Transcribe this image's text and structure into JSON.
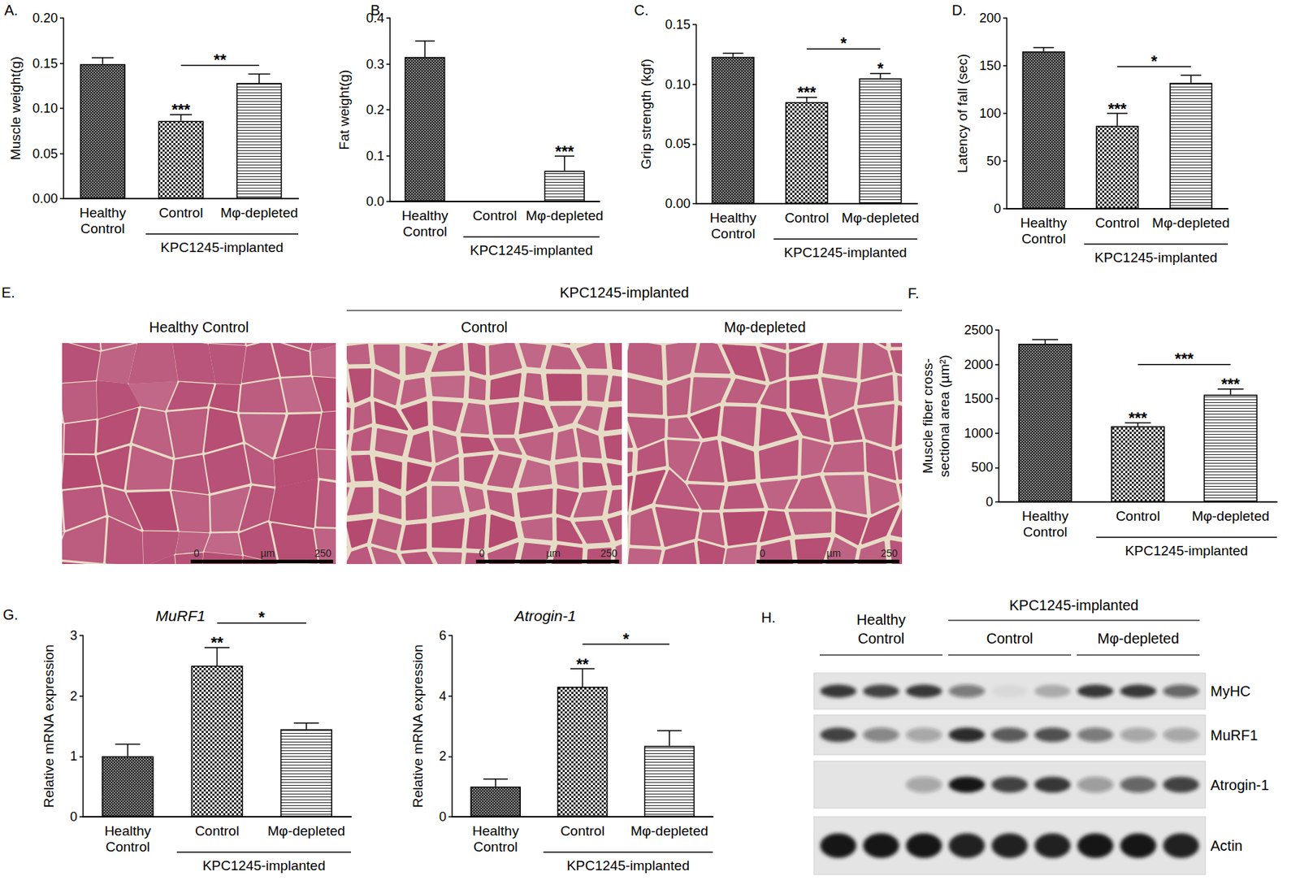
{
  "chart_data": [
    {
      "panel": "A.",
      "type": "bar",
      "y_label": "Muscle weight(g)",
      "categories": [
        "Healthy\nControl",
        "Control",
        "Mφ-depleted"
      ],
      "group": {
        "label": "KPC1245-implanted",
        "categories": [
          "Control",
          "Mφ-depleted"
        ]
      },
      "values": [
        0.149,
        0.086,
        0.128
      ],
      "errors": [
        0.007,
        0.007,
        0.01
      ],
      "colors": [
        "#3c3c3c",
        "#2a2a2a",
        "#2a2a2a"
      ],
      "ylim": [
        0,
        0.2
      ],
      "yticks": [
        {
          "value": 0,
          "label": "0.00"
        },
        0.05,
        {
          "value": 0.1,
          "label": "0.10"
        },
        0.15,
        {
          "value": 0.2,
          "label": "0.20"
        }
      ],
      "stars": [
        null,
        "***",
        null
      ],
      "comparison": {
        "between": [
          "Control",
          "Mφ-depleted"
        ],
        "label": "**"
      }
    },
    {
      "panel": "B.",
      "type": "bar",
      "y_label": "Fat weight(g)",
      "categories": [
        "Healthy\nControl",
        "Control",
        "Mφ-depleted"
      ],
      "group": {
        "label": "KPC1245-implanted",
        "categories": [
          "Control",
          "Mφ-depleted"
        ]
      },
      "values": [
        0.315,
        0,
        0.067
      ],
      "errors": [
        0.035,
        0,
        0.032
      ],
      "colors": [
        "#3c3c3c",
        "#2a2a2a",
        "#2a2a2a"
      ],
      "ylim": [
        0,
        0.4
      ],
      "yticks": [
        {
          "value": 0,
          "label": "0.0"
        },
        0.1,
        0.2,
        0.3,
        0.4
      ],
      "stars": [
        null,
        null,
        "***"
      ]
    },
    {
      "panel": "C.",
      "type": "bar",
      "y_label": "Grip strength (kgf)",
      "categories": [
        "Healthy\nControl",
        "Control",
        "Mφ-depleted"
      ],
      "group": {
        "label": "KPC1245-implanted",
        "categories": [
          "Control",
          "Mφ-depleted"
        ]
      },
      "values": [
        0.123,
        0.085,
        0.105
      ],
      "errors": [
        0.003,
        0.004,
        0.004
      ],
      "colors": [
        "#3c3c3c",
        "#2a2a2a",
        "#2a2a2a"
      ],
      "ylim": [
        0,
        0.15
      ],
      "yticks": [
        {
          "value": 0,
          "label": "0.00"
        },
        0.05,
        {
          "value": 0.1,
          "label": "0.10"
        },
        0.15
      ],
      "stars": [
        null,
        "***",
        "*"
      ],
      "comparison": {
        "between": [
          "Control",
          "Mφ-depleted"
        ],
        "label": "*"
      }
    },
    {
      "panel": "D.",
      "type": "bar",
      "y_label": "Latency of fall (sec)",
      "categories": [
        "Healthy\nControl",
        "Control",
        "Mφ-depleted"
      ],
      "group": {
        "label": "KPC1245-implanted",
        "categories": [
          "Control",
          "Mφ-depleted"
        ]
      },
      "values": [
        165,
        87,
        132
      ],
      "errors": [
        4,
        13,
        8
      ],
      "colors": [
        "#3c3c3c",
        "#2a2a2a",
        "#2a2a2a"
      ],
      "ylim": [
        0,
        200
      ],
      "yticks": [
        0,
        50,
        100,
        150,
        200
      ],
      "stars": [
        null,
        "***",
        null
      ],
      "comparison": {
        "between": [
          "Control",
          "Mφ-depleted"
        ],
        "label": "*"
      }
    },
    {
      "panel": "E.",
      "type": "micrograph",
      "images": [
        "Healthy Control",
        "Control",
        "Mφ-depleted"
      ],
      "group": {
        "label": "KPC1245-implanted",
        "images": [
          "Control",
          "Mφ-depleted"
        ]
      },
      "scale_bar": {
        "min": 0,
        "max": 250,
        "unit": "µm"
      }
    },
    {
      "panel": "F.",
      "type": "bar",
      "y_label": "Muscle fiber cross-\nsectional area (µm²)",
      "categories": [
        "Healthy\nControl",
        "Control",
        "Mφ-depleted"
      ],
      "group": {
        "label": "KPC1245-implanted",
        "categories": [
          "Control",
          "Mφ-depleted"
        ]
      },
      "values": [
        2300,
        1100,
        1560
      ],
      "errors": [
        60,
        50,
        80
      ],
      "colors": [
        "#3c3c3c",
        "#2a2a2a",
        "#2a2a2a"
      ],
      "ylim": [
        0,
        2500
      ],
      "yticks": [
        0,
        500,
        1000,
        1500,
        2000,
        2500
      ],
      "stars": [
        null,
        "***",
        "***"
      ],
      "comparison": {
        "between": [
          "Control",
          "Mφ-depleted"
        ],
        "label": "***"
      }
    },
    {
      "panel": "G.",
      "type": "bar",
      "title": "MuRF1",
      "y_label": "Relative mRNA expression",
      "categories": [
        "Healthy\nControl",
        "Control",
        "Mφ-depleted"
      ],
      "group": {
        "label": "KPC1245-implanted",
        "categories": [
          "Control",
          "Mφ-depleted"
        ]
      },
      "values": [
        1.0,
        2.5,
        1.45
      ],
      "errors": [
        0.2,
        0.3,
        0.1
      ],
      "colors": [
        "#3c3c3c",
        "#2a2a2a",
        "#2a2a2a"
      ],
      "ylim": [
        0,
        3
      ],
      "yticks": [
        0,
        1,
        2,
        3
      ],
      "stars": [
        null,
        "**",
        null
      ],
      "comparison": {
        "between": [
          "Control",
          "Mφ-depleted"
        ],
        "label": "*"
      }
    },
    {
      "type": "bar",
      "title": "Atrogin-1",
      "y_label": "Relative mRNA expression",
      "categories": [
        "Healthy\nControl",
        "Control",
        "Mφ-depleted"
      ],
      "group": {
        "label": "KPC1245-implanted",
        "categories": [
          "Control",
          "Mφ-depleted"
        ]
      },
      "values": [
        1.0,
        4.3,
        2.35
      ],
      "errors": [
        0.25,
        0.6,
        0.5
      ],
      "colors": [
        "#3c3c3c",
        "#2a2a2a",
        "#2a2a2a"
      ],
      "ylim": [
        0,
        6
      ],
      "yticks": [
        0,
        2,
        4,
        6
      ],
      "stars": [
        null,
        "**",
        null
      ],
      "comparison": {
        "between": [
          "Control",
          "Mφ-depleted"
        ],
        "label": "*"
      }
    },
    {
      "panel": "H.",
      "type": "western_blot",
      "groups": [
        "Healthy\nControl",
        "Control",
        "Mφ-depleted"
      ],
      "group": {
        "label": "KPC1245-implanted",
        "categories": [
          "Control",
          "Mφ-depleted"
        ]
      },
      "bands": [
        {
          "name": "MyHC",
          "intensity": [
            0.85,
            0.8,
            0.85,
            0.5,
            0.05,
            0.25,
            0.85,
            0.85,
            0.6
          ]
        },
        {
          "name": "MuRF1",
          "intensity": [
            0.8,
            0.45,
            0.3,
            0.9,
            0.65,
            0.7,
            0.5,
            0.3,
            0.3
          ]
        },
        {
          "name": "Atrogin-1",
          "intensity": [
            0,
            0,
            0.3,
            1,
            0.8,
            0.85,
            0.35,
            0.6,
            0.8
          ]
        },
        {
          "name": "Actin",
          "intensity": [
            1,
            1,
            1,
            0.95,
            0.95,
            0.95,
            1,
            1,
            0.95
          ]
        }
      ]
    }
  ]
}
